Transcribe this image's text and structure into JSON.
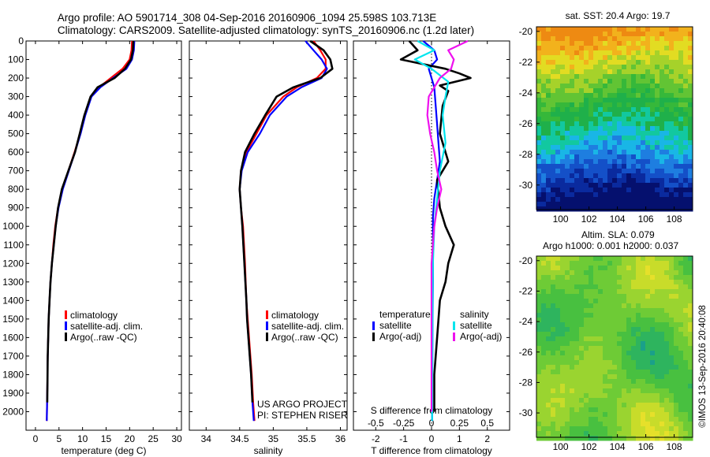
{
  "header": {
    "title_line1": "Argo profile: AO 5901714_308 04-Sep-2016 20160906_1094 25.598S 103.713E",
    "title_line2": "Climatology: CARS2009. Satellite-adjusted climatology: synTS_20160906.nc (1.2d later)"
  },
  "credits": {
    "project": "US ARGO PROJECT",
    "pi": "PI: STEPHEN RISER",
    "imos": "©IMOS 13-Sep-2016 20:40:08"
  },
  "colors": {
    "climatology": "#ff0000",
    "satellite": "#0000ff",
    "argo": "#000000",
    "salinity_satellite": "#00e5ee",
    "salinity_argo": "#ee11ee"
  },
  "chart_data": [
    {
      "type": "line",
      "id": "temperature",
      "xlabel": "temperature (deg C)",
      "ylabel": "",
      "xlim": [
        -2,
        31
      ],
      "ylim": [
        2100,
        0
      ],
      "xticks": [
        0,
        5,
        10,
        15,
        20,
        25,
        30
      ],
      "yticks": [
        0,
        100,
        200,
        300,
        400,
        500,
        600,
        700,
        800,
        900,
        1000,
        1100,
        1200,
        1300,
        1400,
        1500,
        1600,
        1700,
        1800,
        1900,
        2000
      ],
      "legend": [
        "climatology",
        "satellite-adj. clim.",
        "Argo(..raw -QC)"
      ],
      "legend_position": "bottom-center",
      "series": [
        {
          "name": "climatology",
          "color": "#ff0000",
          "x": [
            20.5,
            20.4,
            20.0,
            18.5,
            16.0,
            13.5,
            11.8,
            10.5,
            9.5,
            8.3,
            7.0,
            5.7,
            4.8,
            4.2,
            3.8,
            3.5,
            3.2,
            3.0,
            2.8,
            2.7,
            2.6,
            2.5,
            2.4
          ],
          "y": [
            0,
            50,
            100,
            150,
            200,
            250,
            300,
            400,
            500,
            600,
            700,
            800,
            900,
            1000,
            1100,
            1200,
            1300,
            1400,
            1500,
            1600,
            1700,
            1900,
            2050
          ]
        },
        {
          "name": "satellite-adj. clim.",
          "color": "#0000ff",
          "x": [
            21.0,
            20.9,
            20.5,
            19.3,
            16.5,
            13.8,
            11.9,
            10.6,
            9.6,
            8.4,
            7.1,
            5.8,
            4.9,
            4.3,
            3.9,
            3.5,
            3.2,
            3.0,
            2.8,
            2.7,
            2.6,
            2.5,
            2.4
          ],
          "y": [
            0,
            50,
            100,
            150,
            200,
            250,
            300,
            400,
            500,
            600,
            700,
            800,
            900,
            1000,
            1100,
            1200,
            1300,
            1400,
            1500,
            1600,
            1700,
            1900,
            2050
          ]
        },
        {
          "name": "Argo(..raw -QC)",
          "color": "#000000",
          "x": [
            20.8,
            20.7,
            20.3,
            19.0,
            16.8,
            13.2,
            11.7,
            10.4,
            9.4,
            8.4,
            7.0,
            5.6,
            4.8,
            4.3,
            3.9,
            3.5,
            3.2,
            3.0,
            2.8,
            2.7,
            2.6,
            2.5
          ],
          "y": [
            0,
            50,
            100,
            150,
            200,
            250,
            300,
            400,
            500,
            600,
            700,
            800,
            900,
            1000,
            1100,
            1200,
            1300,
            1400,
            1500,
            1600,
            1700,
            1950
          ]
        }
      ]
    },
    {
      "type": "line",
      "id": "salinity",
      "xlabel": "salinity",
      "xlim": [
        33.75,
        36.1
      ],
      "ylim": [
        2100,
        0
      ],
      "xticks": [
        34,
        34.5,
        35,
        35.5,
        36
      ],
      "yticks": [
        0,
        100,
        200,
        300,
        400,
        500,
        600,
        700,
        800,
        900,
        1000,
        1100,
        1200,
        1300,
        1400,
        1500,
        1600,
        1700,
        1800,
        1900,
        2000
      ],
      "legend": [
        "climatology",
        "satellite-adj. clim.",
        "Argo(..raw -QC)"
      ],
      "legend_position": "bottom-right",
      "series": [
        {
          "name": "climatology",
          "color": "#ff0000",
          "x": [
            35.6,
            35.7,
            35.78,
            35.78,
            35.65,
            35.35,
            35.15,
            34.9,
            34.75,
            34.6,
            34.52,
            34.5,
            34.52,
            34.55,
            34.58,
            34.6,
            34.62,
            34.64,
            34.66,
            34.68,
            34.7,
            34.72
          ],
          "y": [
            0,
            50,
            100,
            150,
            200,
            250,
            300,
            400,
            500,
            600,
            700,
            800,
            900,
            1000,
            1200,
            1400,
            1500,
            1600,
            1700,
            1800,
            1950,
            2050
          ]
        },
        {
          "name": "satellite-adj. clim.",
          "color": "#0000ff",
          "x": [
            35.48,
            35.6,
            35.72,
            35.8,
            35.72,
            35.42,
            35.2,
            34.95,
            34.8,
            34.62,
            34.53,
            34.5,
            34.52,
            34.54,
            34.57,
            34.6,
            34.61,
            34.63,
            34.65,
            34.67,
            34.69,
            34.71
          ],
          "y": [
            0,
            50,
            100,
            150,
            200,
            250,
            300,
            400,
            500,
            600,
            700,
            800,
            900,
            1000,
            1200,
            1400,
            1500,
            1600,
            1700,
            1800,
            1950,
            2050
          ]
        },
        {
          "name": "Argo(..raw -QC)",
          "color": "#000000",
          "x": [
            35.55,
            35.75,
            35.85,
            35.88,
            35.7,
            35.3,
            35.05,
            34.88,
            34.72,
            34.58,
            34.52,
            34.5,
            34.52,
            34.54,
            34.57,
            34.6,
            34.61,
            34.63,
            34.65,
            34.67,
            34.69
          ],
          "y": [
            0,
            50,
            100,
            150,
            200,
            250,
            300,
            400,
            500,
            600,
            700,
            800,
            900,
            1000,
            1200,
            1400,
            1500,
            1600,
            1700,
            1800,
            1950
          ]
        }
      ]
    },
    {
      "type": "line",
      "id": "difference",
      "xlabel": "T difference from climatology",
      "xlabel2": "S difference from climatology",
      "xlim": [
        -2.8,
        2.8
      ],
      "ylim": [
        2100,
        0
      ],
      "xticks": [
        -2,
        -1,
        0,
        1,
        2
      ],
      "s_ticks": [
        "-0.5",
        "-0.25",
        "0",
        "0.25",
        "0.5"
      ],
      "s_tick_positions": [
        -2,
        -1,
        0,
        1,
        2
      ],
      "yticks": [
        0,
        100,
        200,
        300,
        400,
        500,
        600,
        700,
        800,
        900,
        1000,
        1100,
        1200,
        1300,
        1400,
        1500,
        1600,
        1700,
        1800,
        1900,
        2000
      ],
      "legend": {
        "temperature": "temperature",
        "salinity": "salinity",
        "t_satellite": "satellite",
        "t_argo": "Argo(-adj)",
        "s_satellite": "satellite",
        "s_argo": "Argo(-adj)"
      },
      "legend_position": "bottom",
      "series": [
        {
          "name": "temperature satellite",
          "color": "#0000ff",
          "x": [
            -0.3,
            0.1,
            0.2,
            -0.1,
            0.1,
            0.15,
            0.2,
            0.25,
            0.3,
            0.2,
            0.1,
            0.05,
            0.05,
            0.05,
            0.04,
            0.03,
            0.02,
            0.02
          ],
          "y": [
            0,
            50,
            100,
            150,
            250,
            350,
            450,
            550,
            650,
            750,
            850,
            950,
            1100,
            1300,
            1500,
            1700,
            1900,
            2050
          ]
        },
        {
          "name": "temperature Argo(-adj)",
          "color": "#000000",
          "x": [
            -0.8,
            -0.5,
            -1.1,
            0.5,
            1.0,
            1.4,
            0.3,
            0.6,
            0.4,
            0.3,
            0.6,
            0.2,
            0.3,
            0.5,
            0.8,
            0.6,
            0.5,
            0.3,
            0.2,
            0.1,
            0.1
          ],
          "y": [
            0,
            50,
            100,
            150,
            175,
            200,
            240,
            270,
            350,
            500,
            650,
            750,
            900,
            1000,
            1100,
            1200,
            1300,
            1400,
            1600,
            1800,
            2000
          ]
        },
        {
          "name": "salinity satellite",
          "color": "#00e5ee",
          "x": [
            -0.5,
            0.1,
            -0.6,
            0.0,
            0.6,
            0.5,
            0.4,
            0.5,
            0.3,
            0.2,
            0.1,
            0.05,
            0.04,
            0.03,
            0.02
          ],
          "y": [
            0,
            50,
            100,
            150,
            220,
            300,
            400,
            550,
            700,
            850,
            1000,
            1200,
            1400,
            1700,
            2050
          ]
        },
        {
          "name": "salinity Argo(-adj)",
          "color": "#ee11ee",
          "x": [
            1.3,
            0.6,
            0.8,
            0.7,
            0.3,
            -0.1,
            -0.15,
            -0.05,
            0.1,
            0.2,
            0.35,
            0.2,
            0.1,
            0.0,
            0.0,
            0.0
          ],
          "y": [
            0,
            50,
            100,
            150,
            200,
            300,
            400,
            500,
            600,
            700,
            800,
            900,
            1000,
            1200,
            1500,
            2000
          ]
        }
      ]
    },
    {
      "type": "heatmap",
      "id": "sst_map",
      "title": "sat. SST: 20.4  Argo: 19.7",
      "xlim": [
        98.3,
        109.3
      ],
      "ylim": [
        -31.6,
        -19.7
      ],
      "xticks": [
        100,
        102,
        104,
        106,
        108
      ],
      "yticks": [
        -20,
        -22,
        -24,
        -26,
        -28,
        -30
      ],
      "grid": false
    },
    {
      "type": "heatmap",
      "id": "sla_map",
      "title": "Altim. SLA: 0.079",
      "title2": "Argo h1000: 0.001 h2000: 0.037",
      "xlim": [
        98.3,
        109.3
      ],
      "ylim": [
        -31.6,
        -19.7
      ],
      "xticks": [
        100,
        102,
        104,
        106,
        108
      ],
      "yticks": [
        -20,
        -22,
        -24,
        -26,
        -28,
        -30
      ],
      "grid": false
    }
  ]
}
